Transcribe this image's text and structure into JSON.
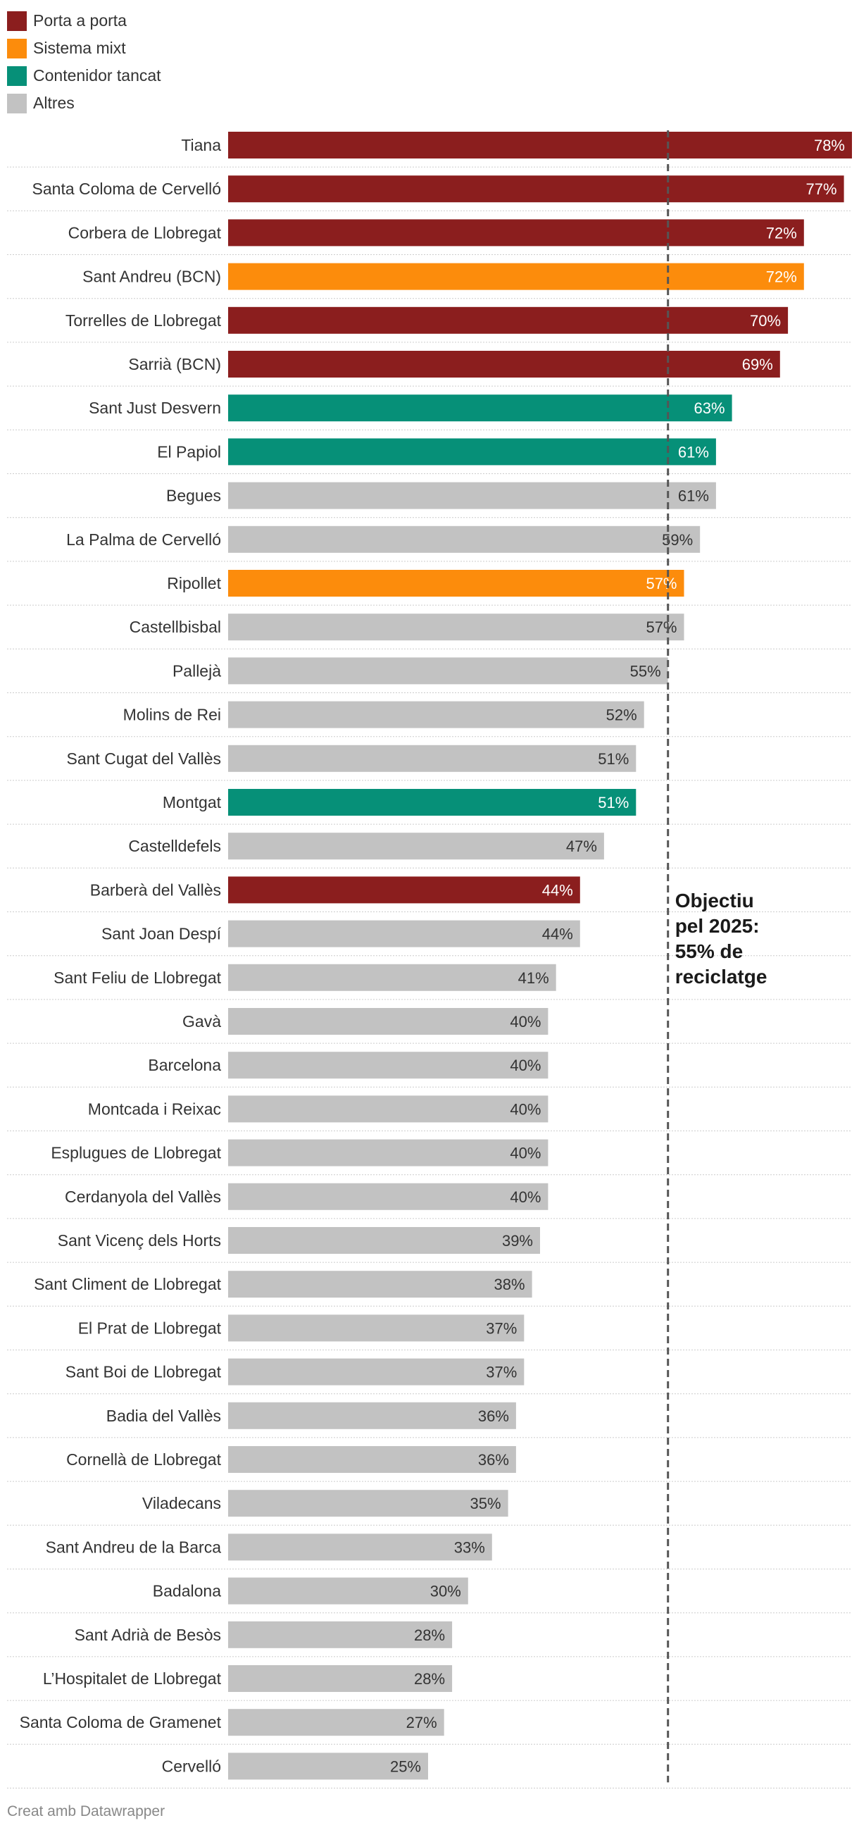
{
  "legend": [
    {
      "label": "Porta a porta",
      "color": "#8b1e1e"
    },
    {
      "label": "Sistema mixt",
      "color": "#fc8c0c"
    },
    {
      "label": "Contenidor tancat",
      "color": "#069078"
    },
    {
      "label": "Altres",
      "color": "#c2c2c2"
    }
  ],
  "footer": "Creat amb Datawrapper",
  "chart_data": {
    "type": "bar",
    "orientation": "horizontal",
    "value_suffix": "%",
    "xlim": [
      0,
      78
    ],
    "categories": [
      "Tiana",
      "Santa Coloma de Cervelló",
      "Corbera de Llobregat",
      "Sant Andreu (BCN)",
      "Torrelles de Llobregat",
      "Sarrià (BCN)",
      "Sant Just Desvern",
      "El Papiol",
      "Begues",
      "La Palma de Cervelló",
      "Ripollet",
      "Castellbisbal",
      "Pallejà",
      "Molins de Rei",
      "Sant Cugat del Vallès",
      "Montgat",
      "Castelldefels",
      "Barberà del Vallès",
      "Sant Joan Despí",
      "Sant Feliu de Llobregat",
      "Gavà",
      "Barcelona",
      "Montcada i Reixac",
      "Esplugues de Llobregat",
      "Cerdanyola del Vallès",
      "Sant Vicenç dels Horts",
      "Sant Climent de Llobregat",
      "El Prat de Llobregat",
      "Sant Boi de Llobregat",
      "Badia del Vallès",
      "Cornellà de Llobregat",
      "Viladecans",
      "Sant Andreu de la Barca",
      "Badalona",
      "Sant Adrià de Besòs",
      "L’Hospitalet de Llobregat",
      "Santa Coloma de Gramenet",
      "Cervelló"
    ],
    "values": [
      78,
      77,
      72,
      72,
      70,
      69,
      63,
      61,
      61,
      59,
      57,
      57,
      55,
      52,
      51,
      51,
      47,
      44,
      44,
      41,
      40,
      40,
      40,
      40,
      40,
      39,
      38,
      37,
      37,
      36,
      36,
      35,
      33,
      30,
      28,
      28,
      27,
      25
    ],
    "groups": [
      0,
      0,
      0,
      1,
      0,
      0,
      2,
      2,
      3,
      3,
      1,
      3,
      3,
      3,
      3,
      2,
      3,
      0,
      3,
      3,
      3,
      3,
      3,
      3,
      3,
      3,
      3,
      3,
      3,
      3,
      3,
      3,
      3,
      3,
      3,
      3,
      3,
      3
    ],
    "group_names": [
      "Porta a porta",
      "Sistema mixt",
      "Contenidor tancat",
      "Altres"
    ],
    "group_colors": [
      "#8b1e1e",
      "#fc8c0c",
      "#069078",
      "#c2c2c2"
    ],
    "reference_line": {
      "value": 55,
      "label_lines": [
        "Objectiu",
        "pel 2025:",
        "55% de",
        "reciclatge"
      ]
    }
  }
}
